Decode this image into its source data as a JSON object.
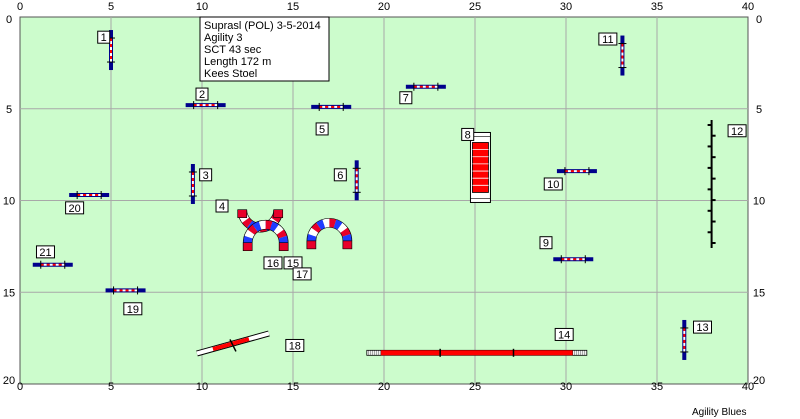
{
  "course_info": {
    "title": "Suprasl (POL) 3-5-2014",
    "class": "Agility 3",
    "sct": "SCT 43 sec",
    "length": "Length 172 m",
    "judge": "Kees Stoel"
  },
  "footer": "Agility Blues",
  "colors": {
    "field": "#ccfccc",
    "grid": "#a8a8a8",
    "bar_red": "#ff0000",
    "wing_blue": "#00008b",
    "tunnel_blue": "#1f3cff",
    "tunnel_red": "#e8002a"
  },
  "axis": {
    "x_min": 0,
    "x_max": 40,
    "y_min": 0,
    "y_max": 20,
    "x_ticks": [
      "0",
      "5",
      "10",
      "15",
      "20",
      "25",
      "30",
      "35",
      "40"
    ],
    "y_ticks": [
      "0",
      "5",
      "10",
      "15",
      "20"
    ]
  },
  "obstacles": [
    {
      "number": "1",
      "type": "jump",
      "x": 5.0,
      "y": 1.8,
      "orientation": "vertical",
      "label_x": 4.6,
      "label_y": 1.1
    },
    {
      "number": "2",
      "type": "jump",
      "x": 10.2,
      "y": 4.8,
      "orientation": "horizontal",
      "label_x": 10.0,
      "label_y": 4.2
    },
    {
      "number": "3",
      "type": "jump",
      "x": 9.5,
      "y": 9.1,
      "orientation": "vertical",
      "label_x": 10.2,
      "label_y": 8.6
    },
    {
      "number": "4",
      "type": "tunnel",
      "x": 13.2,
      "y": 10.5,
      "arc": "down",
      "label_x": 11.1,
      "label_y": 10.3
    },
    {
      "number": "5",
      "type": "jump",
      "x": 17.1,
      "y": 4.9,
      "orientation": "horizontal",
      "label_x": 16.6,
      "label_y": 6.1
    },
    {
      "number": "6",
      "type": "jump",
      "x": 18.5,
      "y": 8.9,
      "orientation": "vertical",
      "label_x": 17.6,
      "label_y": 8.6
    },
    {
      "number": "7",
      "type": "jump",
      "x": 22.3,
      "y": 3.8,
      "orientation": "horizontal",
      "label_x": 21.2,
      "label_y": 4.4
    },
    {
      "number": "8",
      "type": "wall",
      "x": 25.3,
      "y": 8.2,
      "orientation": "vertical",
      "label_x": 24.6,
      "label_y": 6.4
    },
    {
      "number": "9",
      "type": "jump",
      "x": 30.4,
      "y": 13.2,
      "orientation": "horizontal",
      "label_x": 28.9,
      "label_y": 12.3
    },
    {
      "number": "10",
      "type": "jump",
      "x": 30.6,
      "y": 8.4,
      "orientation": "horizontal",
      "label_x": 29.3,
      "label_y": 9.1
    },
    {
      "number": "11",
      "type": "jump",
      "x": 33.1,
      "y": 2.1,
      "orientation": "vertical",
      "label_x": 32.3,
      "label_y": 1.2
    },
    {
      "number": "12",
      "type": "weave",
      "x": 38.0,
      "y": 9.1,
      "orientation": "vertical",
      "label_x": 39.4,
      "label_y": 6.2
    },
    {
      "number": "13",
      "type": "jump",
      "x": 36.5,
      "y": 17.6,
      "orientation": "vertical",
      "label_x": 37.5,
      "label_y": 16.9
    },
    {
      "number": "14",
      "type": "dogwalk",
      "x": 25.1,
      "y": 18.3,
      "orientation": "horizontal",
      "label_x": 29.9,
      "label_y": 17.3
    },
    {
      "number": "15",
      "type": "tunnel",
      "x": 17.0,
      "y": 12.2,
      "arc": "up",
      "label_x": 15.0,
      "label_y": 13.4
    },
    {
      "number": "16",
      "type": "tunnel",
      "x": 13.5,
      "y": 12.3,
      "arc": "up",
      "label_x": 13.9,
      "label_y": 13.4
    },
    {
      "number": "17",
      "type": "tunnel",
      "x": 17.0,
      "y": 12.2,
      "arc": "up",
      "label_x": 15.5,
      "label_y": 14.0
    },
    {
      "number": "18",
      "type": "seesaw",
      "x": 11.7,
      "y": 17.9,
      "orientation": "diagonal",
      "label_x": 15.1,
      "label_y": 17.9
    },
    {
      "number": "19",
      "type": "jump",
      "x": 5.8,
      "y": 14.9,
      "orientation": "horizontal",
      "label_x": 6.2,
      "label_y": 15.9
    },
    {
      "number": "20",
      "type": "jump",
      "x": 3.8,
      "y": 9.7,
      "orientation": "horizontal",
      "label_x": 3.0,
      "label_y": 10.4
    },
    {
      "number": "21",
      "type": "jump",
      "x": 1.8,
      "y": 13.5,
      "orientation": "horizontal",
      "label_x": 1.4,
      "label_y": 12.8
    }
  ]
}
